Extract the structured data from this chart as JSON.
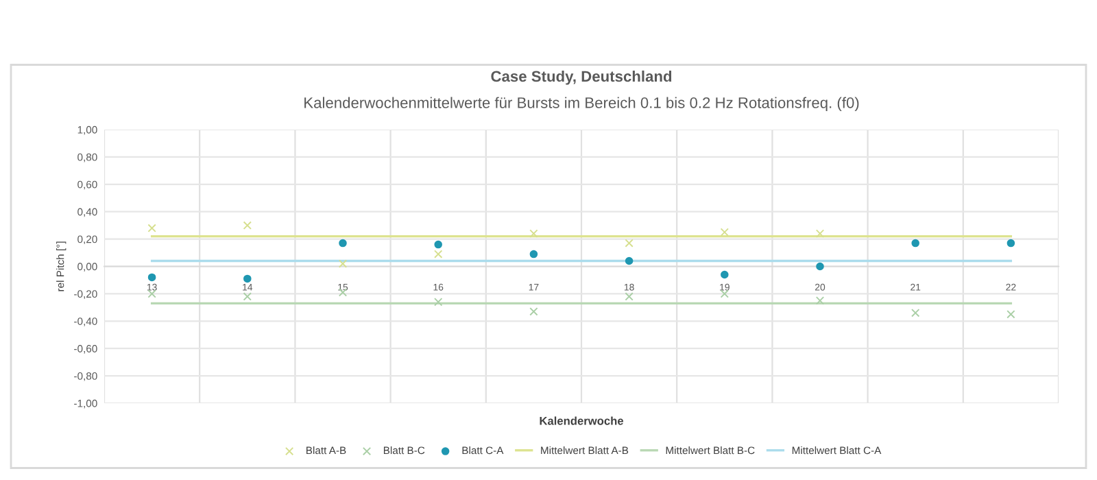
{
  "chart_data": {
    "type": "scatter",
    "title": "Case Study, Deutschland",
    "subtitle": "Kalenderwochenmittelwerte für Bursts im Bereich 0.1 bis 0.2 Hz Rotationsfreq. (f0)",
    "xlabel": "Kalenderwoche",
    "ylabel": "rel Pitch [°]",
    "categories": [
      "13",
      "14",
      "15",
      "16",
      "17",
      "18",
      "19",
      "20",
      "21",
      "22"
    ],
    "series": [
      {
        "name": "Blatt A-B",
        "marker": "cross",
        "color": "#d6df8e",
        "values": [
          0.28,
          0.3,
          0.02,
          0.09,
          0.24,
          0.17,
          0.25,
          0.24,
          null,
          null
        ]
      },
      {
        "name": "Blatt B-C",
        "marker": "cross",
        "color": "#aacfa6",
        "values": [
          -0.2,
          -0.22,
          -0.19,
          -0.26,
          -0.33,
          -0.22,
          -0.2,
          -0.25,
          -0.34,
          -0.35
        ]
      },
      {
        "name": "Blatt C-A",
        "marker": "circle",
        "color": "#1f97b1",
        "values": [
          -0.08,
          -0.09,
          0.17,
          0.16,
          0.09,
          0.04,
          -0.06,
          0.0,
          0.17,
          0.17
        ]
      },
      {
        "name": "Mittelwert Blatt A-B",
        "type": "line",
        "marker": "none",
        "color": "#dde390",
        "values": [
          0.22,
          0.22,
          0.22,
          0.22,
          0.22,
          0.22,
          0.22,
          0.22,
          0.22,
          0.22
        ]
      },
      {
        "name": "Mittelwert Blatt B-C",
        "type": "line",
        "marker": "none",
        "color": "#b9d8b4",
        "values": [
          -0.27,
          -0.27,
          -0.27,
          -0.27,
          -0.27,
          -0.27,
          -0.27,
          -0.27,
          -0.27,
          -0.27
        ]
      },
      {
        "name": "Mittelwert Blatt C-A",
        "type": "line",
        "marker": "none",
        "color": "#abdcec",
        "values": [
          0.04,
          0.04,
          0.04,
          0.04,
          0.04,
          0.04,
          0.04,
          0.04,
          0.04,
          0.04
        ]
      }
    ],
    "ylim": [
      -1,
      1
    ],
    "yticks": [
      {
        "value": -1,
        "label": "-1,00"
      },
      {
        "value": -0.8,
        "label": "-0,80"
      },
      {
        "value": -0.6,
        "label": "-0,60"
      },
      {
        "value": -0.4,
        "label": "-0,40"
      },
      {
        "value": -0.2,
        "label": "-0,20"
      },
      {
        "value": 0,
        "label": "0,00"
      },
      {
        "value": 0.2,
        "label": "0,20"
      },
      {
        "value": 0.4,
        "label": "0,40"
      },
      {
        "value": 0.6,
        "label": "0,60"
      },
      {
        "value": 0.8,
        "label": "0,80"
      },
      {
        "value": 1,
        "label": "1,00"
      }
    ],
    "grid": true,
    "legend": "bottom"
  }
}
